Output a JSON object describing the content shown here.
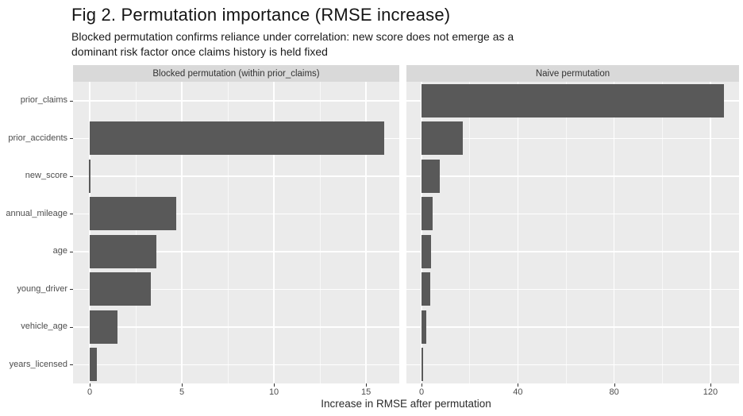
{
  "page": {
    "background": "#ffffff"
  },
  "chart_data": {
    "type": "bar",
    "orientation": "horizontal",
    "title": "Fig 2. Permutation importance (RMSE increase)",
    "subtitle_lines": [
      "Blocked permutation confirms reliance under correlation: new score does not emerge as a",
      "dominant risk factor once claims history is held fixed"
    ],
    "xlabel": "Increase in RMSE after permutation",
    "ylabel": "",
    "legend": "none",
    "grid": "on",
    "categories": [
      "prior_claims",
      "prior_accidents",
      "new_score",
      "annual_mileage",
      "age",
      "young_driver",
      "vehicle_age",
      "years_licensed"
    ],
    "facets": [
      {
        "label": "Blocked permutation (within prior_claims)",
        "values": [
          0,
          16.0,
          -0.1,
          4.7,
          3.6,
          3.3,
          1.5,
          0.4
        ],
        "x_ticks": [
          0,
          5,
          10,
          15
        ],
        "x_minor_ticks": [
          2.5,
          7.5,
          12.5
        ],
        "xlim": [
          -0.9,
          16.8
        ]
      },
      {
        "label": "Naive permutation",
        "values": [
          125.6,
          17.1,
          7.7,
          4.6,
          4.0,
          3.6,
          2.0,
          0.3
        ],
        "x_ticks": [
          0,
          40,
          80,
          120
        ],
        "x_minor_ticks": [
          20,
          60,
          100
        ],
        "xlim": [
          -6.3,
          131.9
        ]
      }
    ],
    "bar_color": "#595959",
    "panel_bg": "#ebebeb",
    "strip_bg": "#d9d9d9",
    "grid_color": "#ffffff",
    "axis_text_color": "#4d4d4d",
    "tick_color": "#333333"
  }
}
